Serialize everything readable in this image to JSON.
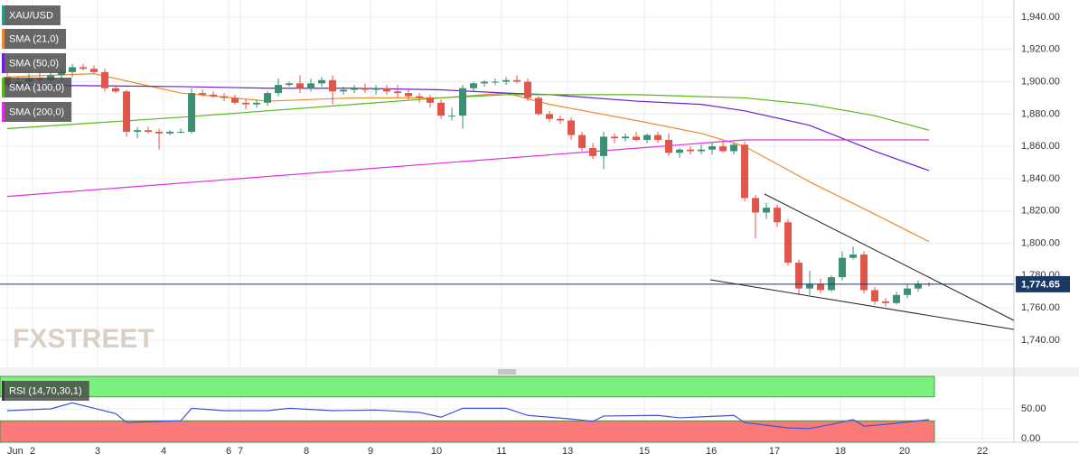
{
  "chart_data": [
    {
      "type": "candlestick",
      "name": "XAU/USD",
      "color": "#2c9a8c",
      "up_color": "#3b8f73",
      "down_color": "#e0564a",
      "watermark": "FXSTREET",
      "xlim": [
        -0.67,
        92.83
      ],
      "xticks": [
        {
          "value": 0,
          "label": "Jun"
        },
        {
          "value": 2.33,
          "label": "2"
        },
        {
          "value": 8.33,
          "label": "3"
        },
        {
          "value": 14.42,
          "label": "4"
        },
        {
          "value": 20.42,
          "label": "6"
        },
        {
          "value": 21.5,
          "label": "7"
        },
        {
          "value": 27.58,
          "label": "8"
        },
        {
          "value": 33.5,
          "label": "9"
        },
        {
          "value": 39.58,
          "label": "10"
        },
        {
          "value": 45.58,
          "label": "11"
        },
        {
          "value": 51.67,
          "label": "13"
        },
        {
          "value": 58.75,
          "label": "15"
        },
        {
          "value": 64.92,
          "label": "16"
        },
        {
          "value": 70.75,
          "label": "17"
        },
        {
          "value": 76.83,
          "label": "18"
        },
        {
          "value": 82.75,
          "label": "20"
        },
        {
          "value": 89.92,
          "label": "22"
        }
      ],
      "ylim": [
        1723.2,
        1950.6
      ],
      "yticks": [
        {
          "value": 1740,
          "label": "1,740.00"
        },
        {
          "value": 1760,
          "label": "1,760.00"
        },
        {
          "value": 1780,
          "label": "1,780.00"
        },
        {
          "value": 1800,
          "label": "1,800.00"
        },
        {
          "value": 1820,
          "label": "1,820.00"
        },
        {
          "value": 1840,
          "label": "1,840.00"
        },
        {
          "value": 1860,
          "label": "1,860.00"
        },
        {
          "value": 1880,
          "label": "1,880.00"
        },
        {
          "value": 1900,
          "label": "1,900.00"
        },
        {
          "value": 1920,
          "label": "1,920.00"
        },
        {
          "value": 1940,
          "label": "1,940.00"
        }
      ],
      "grid": true,
      "x": [
        0,
        1,
        2,
        3,
        4,
        5,
        6,
        7,
        8,
        9,
        10,
        11,
        12,
        13,
        14,
        15,
        16,
        17,
        18,
        19,
        20,
        21,
        22,
        23,
        24,
        25,
        26,
        27,
        28,
        29,
        30,
        31,
        32,
        33,
        34,
        35,
        36,
        37,
        38,
        39,
        40,
        41,
        42,
        43,
        44,
        45,
        46,
        47,
        48,
        49,
        50,
        51,
        52,
        53,
        54,
        55,
        56,
        57,
        58,
        59,
        60,
        61,
        62,
        63,
        64,
        65,
        66,
        67,
        68,
        69,
        70,
        71,
        72,
        73,
        74,
        75,
        76,
        77,
        78,
        79,
        80,
        81,
        82,
        83,
        84,
        85
      ],
      "open": [
        1903,
        1898,
        1900,
        1902,
        1901,
        1904,
        1906,
        1909,
        1908,
        1906,
        1896,
        1894,
        1869,
        1870,
        1869,
        1868,
        1869,
        1869,
        1893,
        1892,
        1891,
        1890,
        1887,
        1886,
        1887,
        1893,
        1898,
        1899,
        1896,
        1899,
        1901,
        1894,
        1895,
        1896,
        1895,
        1896,
        1894,
        1893,
        1891,
        1890,
        1887,
        1879,
        1879,
        1896,
        1899,
        1900,
        1900,
        1901,
        1900,
        1890,
        1880,
        1877,
        1876,
        1867,
        1859,
        1854,
        1866,
        1865,
        1866,
        1864,
        1867,
        1864,
        1856,
        1858,
        1857,
        1858,
        1860,
        1857,
        1861,
        1828,
        1819,
        1822,
        1813,
        1788,
        1772,
        1775,
        1771,
        1779,
        1791,
        1793,
        1771,
        1764,
        1763,
        1768,
        1772,
        1775
      ],
      "high": [
        1906,
        1903,
        1905,
        1906,
        1906,
        1908,
        1911,
        1911,
        1910,
        1908,
        1898,
        1895,
        1872,
        1872,
        1871,
        1870,
        1871,
        1896,
        1895,
        1894,
        1893,
        1892,
        1889,
        1889,
        1894,
        1902,
        1900,
        1904,
        1902,
        1903,
        1904,
        1897,
        1898,
        1899,
        1898,
        1898,
        1898,
        1896,
        1893,
        1892,
        1889,
        1884,
        1898,
        1900,
        1901,
        1902,
        1903,
        1904,
        1902,
        1891,
        1882,
        1879,
        1878,
        1869,
        1862,
        1869,
        1868,
        1868,
        1869,
        1868,
        1869,
        1868,
        1859,
        1860,
        1861,
        1862,
        1863,
        1862,
        1863,
        1830,
        1825,
        1824,
        1815,
        1790,
        1783,
        1778,
        1780,
        1795,
        1798,
        1795,
        1773,
        1766,
        1770,
        1775,
        1777,
        1776
      ],
      "low": [
        1896,
        1895,
        1897,
        1898,
        1898,
        1900,
        1903,
        1907,
        1905,
        1894,
        1893,
        1866,
        1865,
        1868,
        1858,
        1867,
        1868,
        1868,
        1891,
        1890,
        1888,
        1886,
        1883,
        1884,
        1885,
        1891,
        1897,
        1893,
        1894,
        1897,
        1886,
        1892,
        1893,
        1893,
        1892,
        1892,
        1890,
        1889,
        1887,
        1884,
        1877,
        1876,
        1871,
        1894,
        1897,
        1898,
        1898,
        1899,
        1888,
        1879,
        1875,
        1874,
        1864,
        1857,
        1852,
        1846,
        1862,
        1863,
        1863,
        1862,
        1862,
        1854,
        1853,
        1855,
        1855,
        1855,
        1856,
        1855,
        1826,
        1803,
        1815,
        1810,
        1786,
        1768,
        1768,
        1769,
        1770,
        1777,
        1790,
        1769,
        1762,
        1761,
        1762,
        1766,
        1770,
        1773
      ],
      "close": [
        1898,
        1900,
        1902,
        1901,
        1904,
        1906,
        1909,
        1908,
        1906,
        1896,
        1894,
        1869,
        1870,
        1869,
        1868,
        1869,
        1869,
        1893,
        1892,
        1891,
        1890,
        1887,
        1886,
        1887,
        1893,
        1898,
        1899,
        1896,
        1899,
        1901,
        1894,
        1895,
        1896,
        1895,
        1896,
        1894,
        1893,
        1891,
        1890,
        1887,
        1879,
        1879,
        1896,
        1899,
        1900,
        1900,
        1901,
        1900,
        1890,
        1880,
        1877,
        1876,
        1867,
        1859,
        1854,
        1866,
        1865,
        1866,
        1864,
        1867,
        1864,
        1856,
        1858,
        1857,
        1858,
        1860,
        1857,
        1861,
        1828,
        1819,
        1822,
        1813,
        1788,
        1772,
        1775,
        1771,
        1779,
        1791,
        1793,
        1771,
        1764,
        1763,
        1768,
        1772,
        1775,
        1774.65
      ],
      "last_price": {
        "value": 1774.65,
        "label": "1,774.65"
      },
      "overlays": [
        {
          "name": "SMA (21,0)",
          "color": "#f08a2c",
          "x": [
            0,
            8,
            12,
            16,
            24,
            32,
            40,
            46,
            50,
            58,
            64,
            68,
            74,
            80,
            85
          ],
          "values": [
            1903,
            1905,
            1899,
            1893,
            1888,
            1890,
            1890,
            1893,
            1886,
            1876,
            1868,
            1860,
            1838,
            1818,
            1801
          ]
        },
        {
          "name": "SMA (50,0)",
          "color": "#6c1fd8",
          "x": [
            0,
            16,
            24,
            32,
            40,
            46,
            50,
            58,
            64,
            68,
            74,
            80,
            85
          ],
          "values": [
            1898,
            1897,
            1896,
            1896,
            1895,
            1893,
            1892,
            1888,
            1886,
            1882,
            1873,
            1857,
            1845
          ]
        },
        {
          "name": "SMA (100,0)",
          "color": "#58b81c",
          "x": [
            0,
            16,
            32,
            40,
            46,
            58,
            68,
            74,
            80,
            85
          ],
          "values": [
            1871,
            1878,
            1886,
            1890,
            1892,
            1892,
            1890,
            1886,
            1879,
            1870
          ]
        },
        {
          "name": "SMA (200,0)",
          "color": "#e02ee0",
          "x": [
            0,
            68,
            85
          ],
          "values": [
            1829,
            1864,
            1864
          ]
        }
      ]
    },
    {
      "type": "line",
      "xlim": [
        -0.67,
        92.83
      ],
      "ylim": [
        -6,
        104.5
      ],
      "yticks": [
        {
          "value": 0,
          "label": "0.00"
        },
        {
          "value": 50,
          "label": "50.00"
        }
      ],
      "bands": [
        {
          "from": 70,
          "to": 104.5,
          "color": "#7cf07c"
        },
        {
          "from": -6,
          "to": 30,
          "color": "#fa7a7a"
        }
      ],
      "series": [
        {
          "name": "RSI (14,70,30,1)",
          "color": "#3a55d6",
          "x": [
            0,
            4,
            6,
            8,
            10,
            11,
            14,
            16,
            17,
            20,
            24,
            26,
            30,
            34,
            38,
            40,
            42,
            46,
            48,
            52,
            54,
            55,
            60,
            62,
            67,
            68,
            72,
            74,
            76,
            78,
            79,
            81,
            84,
            85
          ],
          "values": [
            47,
            50,
            60,
            51,
            42,
            27,
            29,
            30,
            51,
            47,
            47,
            51,
            47,
            48,
            44,
            36,
            51,
            51,
            39,
            33,
            29,
            38,
            39,
            35,
            39,
            27,
            18,
            17,
            24,
            32,
            21,
            24,
            30,
            32
          ]
        }
      ]
    }
  ]
}
